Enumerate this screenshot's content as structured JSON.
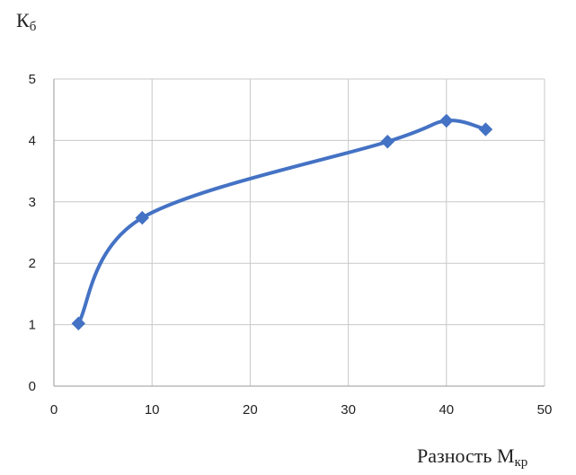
{
  "chart_data": {
    "type": "scatter",
    "ylabel": "К",
    "ylabel_sub": "б",
    "xlabel": "Разность М",
    "xlabel_sub": "кр",
    "xlim": [
      0,
      50
    ],
    "ylim": [
      0,
      5
    ],
    "xticks": [
      "0",
      "10",
      "20",
      "30",
      "40",
      "50"
    ],
    "yticks": [
      "0",
      "1",
      "2",
      "3",
      "4",
      "5"
    ],
    "grid": true,
    "smooth": true,
    "series": [
      {
        "color": "#4472c4",
        "marker": "diamond",
        "points": [
          {
            "x": 2.5,
            "y": 1.02
          },
          {
            "x": 9.0,
            "y": 2.74
          },
          {
            "x": 34.0,
            "y": 3.98
          },
          {
            "x": 40.0,
            "y": 4.32
          },
          {
            "x": 44.0,
            "y": 4.18
          }
        ]
      }
    ]
  }
}
